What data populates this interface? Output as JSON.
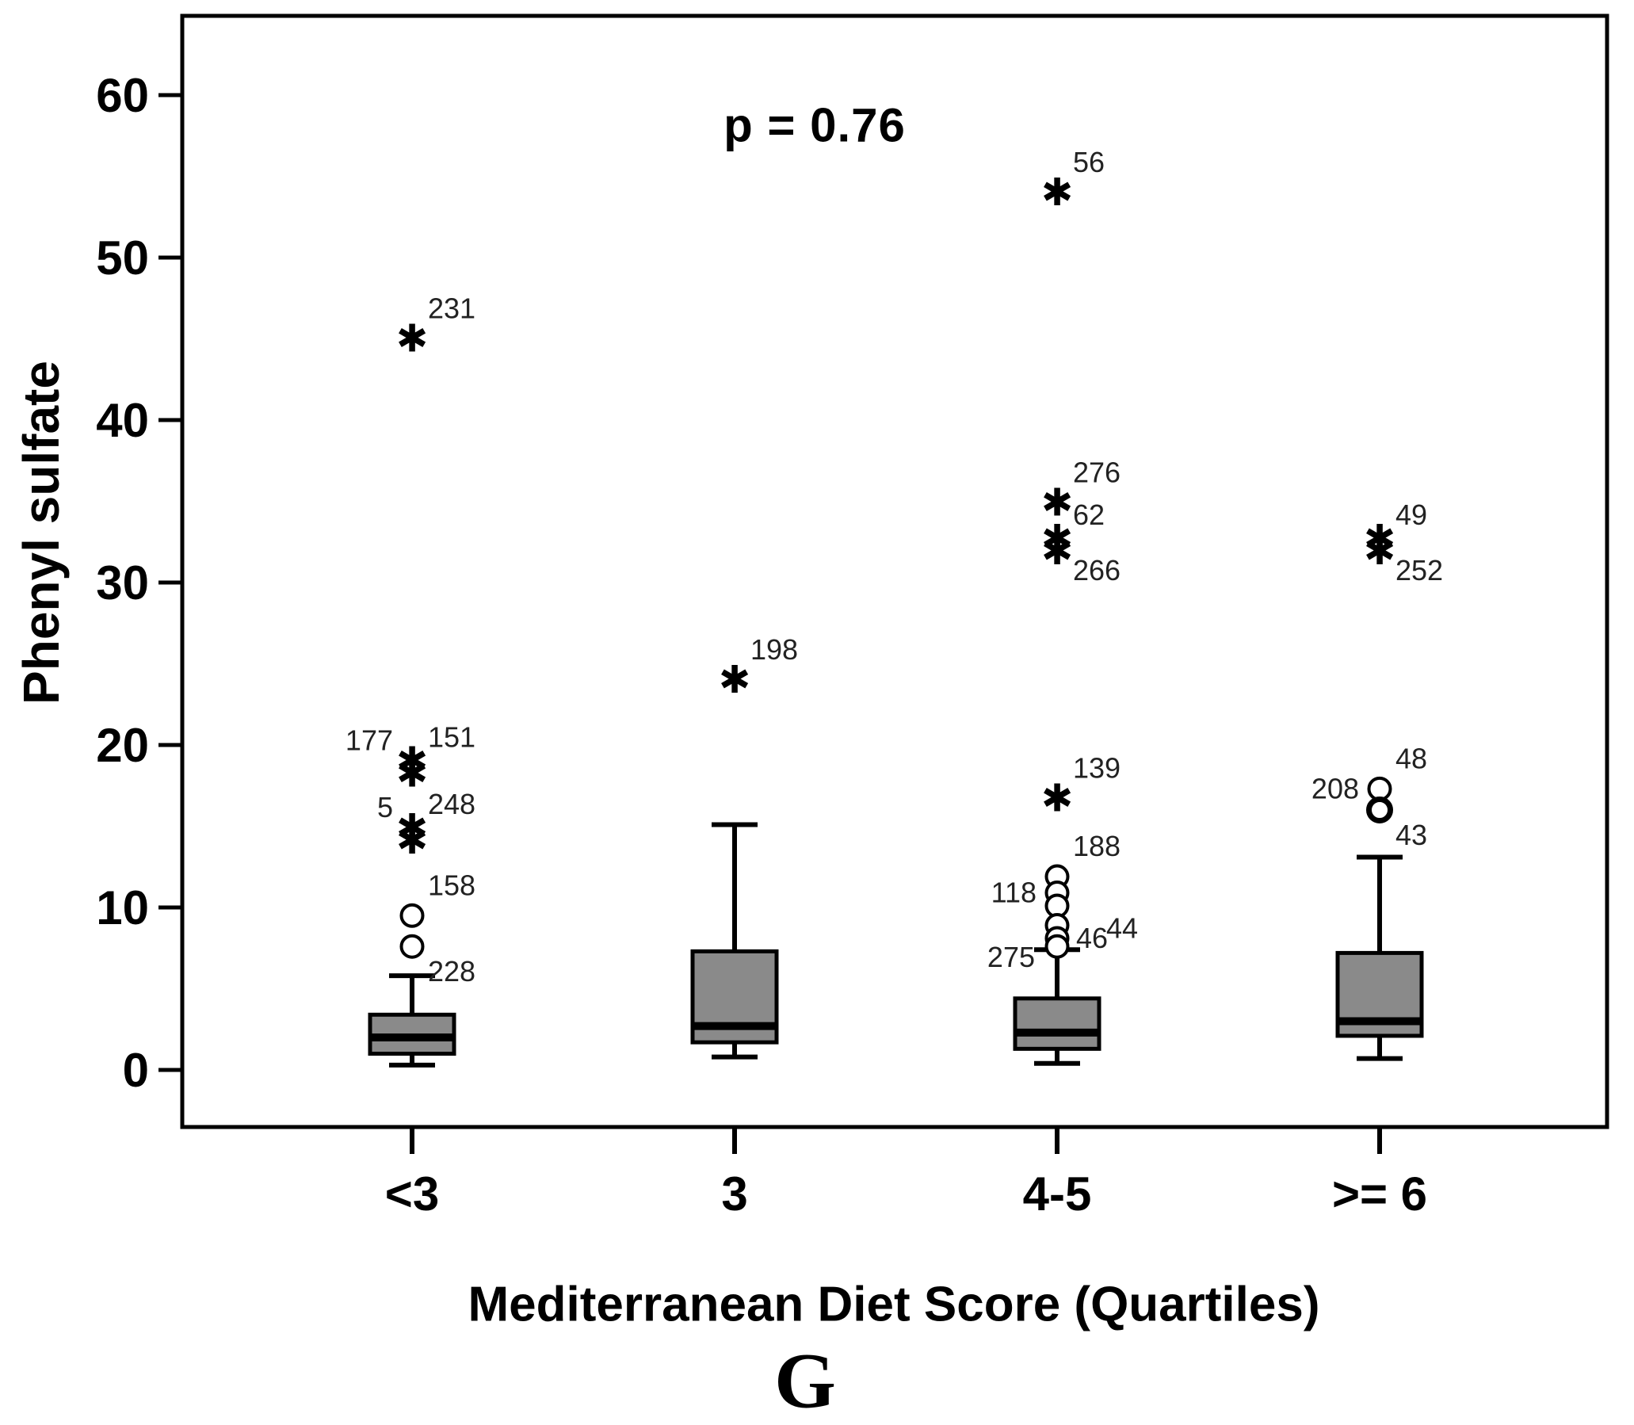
{
  "figure": {
    "p_label": "p = 0.76",
    "ylabel": "Phenyl sulfate",
    "xlabel": "Mediterranean Diet Score (Quartiles)",
    "panel_letter": "G"
  },
  "chart_data": {
    "type": "box",
    "title": "p = 0.76",
    "ylabel": "Phenyl sulfate",
    "xlabel": "Mediterranean Diet Score (Quartiles)",
    "ylim": [
      -3.5,
      65
    ],
    "yticks": [
      0,
      10,
      20,
      30,
      40,
      50,
      60
    ],
    "grid": false,
    "legend": "none",
    "box_fill": "#8a8a8a",
    "box_stroke": "#000000",
    "categories": [
      "<3",
      "3",
      "4-5",
      ">= 6"
    ],
    "series": [
      {
        "category": "<3",
        "whisker_low": 0.3,
        "q1": 1.0,
        "median": 2.0,
        "q3": 3.4,
        "whisker_high": 5.8,
        "outliers": [
          {
            "value": 45.0,
            "marker": "star",
            "labels": [
              {
                "text": "231",
                "pos": "ar"
              }
            ]
          },
          {
            "value": 18.6,
            "marker": "star-double",
            "labels": [
              {
                "text": "177",
                "pos": "al"
              },
              {
                "text": "151",
                "pos": "ar"
              }
            ]
          },
          {
            "value": 14.5,
            "marker": "star-double",
            "labels": [
              {
                "text": "5",
                "pos": "al"
              },
              {
                "text": "248",
                "pos": "ar"
              }
            ]
          },
          {
            "value": 9.5,
            "marker": "circle",
            "labels": [
              {
                "text": "158",
                "pos": "ar"
              }
            ]
          },
          {
            "value": 7.6,
            "marker": "circle",
            "labels": [
              {
                "text": "228",
                "pos": "br"
              }
            ]
          }
        ]
      },
      {
        "category": "3",
        "whisker_low": 0.8,
        "q1": 1.7,
        "median": 2.7,
        "q3": 7.3,
        "whisker_high": 15.1,
        "outliers": [
          {
            "value": 24.0,
            "marker": "star",
            "labels": [
              {
                "text": "198",
                "pos": "ar"
              }
            ]
          }
        ]
      },
      {
        "category": "4-5",
        "whisker_low": 0.4,
        "q1": 1.3,
        "median": 2.3,
        "q3": 4.4,
        "whisker_high": 7.4,
        "outliers": [
          {
            "value": 54.0,
            "marker": "star",
            "labels": [
              {
                "text": "56",
                "pos": "ar"
              }
            ]
          },
          {
            "value": 34.9,
            "marker": "star",
            "labels": [
              {
                "text": "276",
                "pos": "ar"
              }
            ]
          },
          {
            "value": 32.3,
            "marker": "star-double",
            "labels": [
              {
                "text": "62",
                "pos": "ar"
              },
              {
                "text": "266",
                "pos": "br"
              }
            ]
          },
          {
            "value": 16.7,
            "marker": "star",
            "labels": [
              {
                "text": "139",
                "pos": "ar"
              }
            ]
          },
          {
            "value": 11.9,
            "marker": "circle",
            "labels": [
              {
                "text": "188",
                "pos": "ar"
              }
            ]
          },
          {
            "value": 10.9,
            "marker": "circle",
            "labels": [
              {
                "text": "118",
                "pos": "l"
              }
            ]
          },
          {
            "value": 10.1,
            "marker": "circle",
            "labels": []
          },
          {
            "value": 8.9,
            "marker": "circle",
            "labels": [
              {
                "text": "44",
                "pos": "rr"
              }
            ]
          },
          {
            "value": 8.1,
            "marker": "circle",
            "labels": [
              {
                "text": "46",
                "pos": "r"
              }
            ]
          },
          {
            "value": 7.6,
            "marker": "circle",
            "labels": [
              {
                "text": "275",
                "pos": "bl"
              }
            ]
          }
        ]
      },
      {
        "category": ">= 6",
        "whisker_low": 0.7,
        "q1": 2.1,
        "median": 3.0,
        "q3": 7.2,
        "whisker_high": 13.1,
        "outliers": [
          {
            "value": 32.3,
            "marker": "star-double",
            "labels": [
              {
                "text": "49",
                "pos": "ar"
              },
              {
                "text": "252",
                "pos": "br"
              }
            ]
          },
          {
            "value": 17.3,
            "marker": "circle",
            "labels": [
              {
                "text": "208",
                "pos": "l"
              },
              {
                "text": "48",
                "pos": "ar"
              }
            ]
          },
          {
            "value": 16.0,
            "marker": "circle-bold",
            "labels": [
              {
                "text": "43",
                "pos": "br"
              }
            ]
          }
        ]
      }
    ]
  }
}
